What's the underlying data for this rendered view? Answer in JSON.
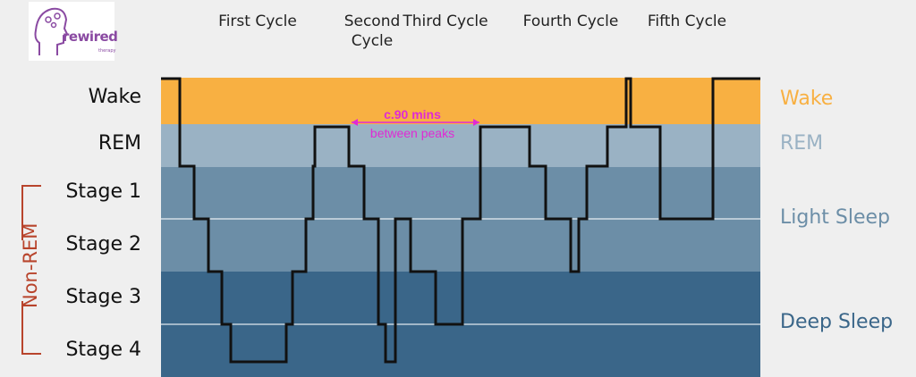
{
  "logo": {
    "text": "rewired",
    "sub": "therapy"
  },
  "cycles": [
    "First Cycle",
    "Second Cycle",
    "Third Cycle",
    "Fourth Cycle",
    "Fifth Cycle"
  ],
  "stage_labels": [
    "Wake",
    "REM",
    "Stage 1",
    "Stage 2",
    "Stage 3",
    "Stage 4"
  ],
  "right_labels": [
    "Wake",
    "REM",
    "Light Sleep",
    "Deep Sleep"
  ],
  "nonrem_label": "Non-REM",
  "annotation": {
    "line1": "c.90 mins",
    "line2": "between peaks"
  },
  "colors": {
    "wake": "#f8b042",
    "rem": "#9ab2c4",
    "light": "#6c8ea7",
    "deep": "#3a6689",
    "hypnogram": "#111111",
    "annotation": "#e02ad4",
    "nonrem": "#b8442c"
  },
  "chart_data": {
    "type": "line",
    "levels": [
      "Wake",
      "REM",
      "Stage 1",
      "Stage 2",
      "Stage 3",
      "Stage 4"
    ],
    "steps": [
      {
        "x": 0,
        "level": 0
      },
      {
        "x": 21,
        "level": 2
      },
      {
        "x": 37,
        "level": 3
      },
      {
        "x": 53,
        "level": 4
      },
      {
        "x": 68,
        "level": 5
      },
      {
        "x": 78,
        "level": 6
      },
      {
        "x": 140,
        "level": 5
      },
      {
        "x": 147,
        "level": 4
      },
      {
        "x": 162,
        "level": 3
      },
      {
        "x": 170,
        "level": 2
      },
      {
        "x": 172,
        "level": 1
      },
      {
        "x": 210,
        "level": 2
      },
      {
        "x": 227,
        "level": 3
      },
      {
        "x": 243,
        "level": 5
      },
      {
        "x": 251,
        "level": 6
      },
      {
        "x": 262,
        "level": 3
      },
      {
        "x": 279,
        "level": 4
      },
      {
        "x": 307,
        "level": 5
      },
      {
        "x": 337,
        "level": 3
      },
      {
        "x": 357,
        "level": 1
      },
      {
        "x": 412,
        "level": 2
      },
      {
        "x": 430,
        "level": 3
      },
      {
        "x": 458,
        "level": 4
      },
      {
        "x": 467,
        "level": 3
      },
      {
        "x": 476,
        "level": 2
      },
      {
        "x": 499,
        "level": 1
      },
      {
        "x": 520,
        "level": 0
      },
      {
        "x": 525,
        "level": 1
      },
      {
        "x": 537,
        "level": 1
      },
      {
        "x": 558,
        "level": 3
      },
      {
        "x": 617,
        "level": 0
      },
      {
        "x": 670,
        "level": 0
      }
    ],
    "xlabel": "",
    "ylabel": ""
  }
}
